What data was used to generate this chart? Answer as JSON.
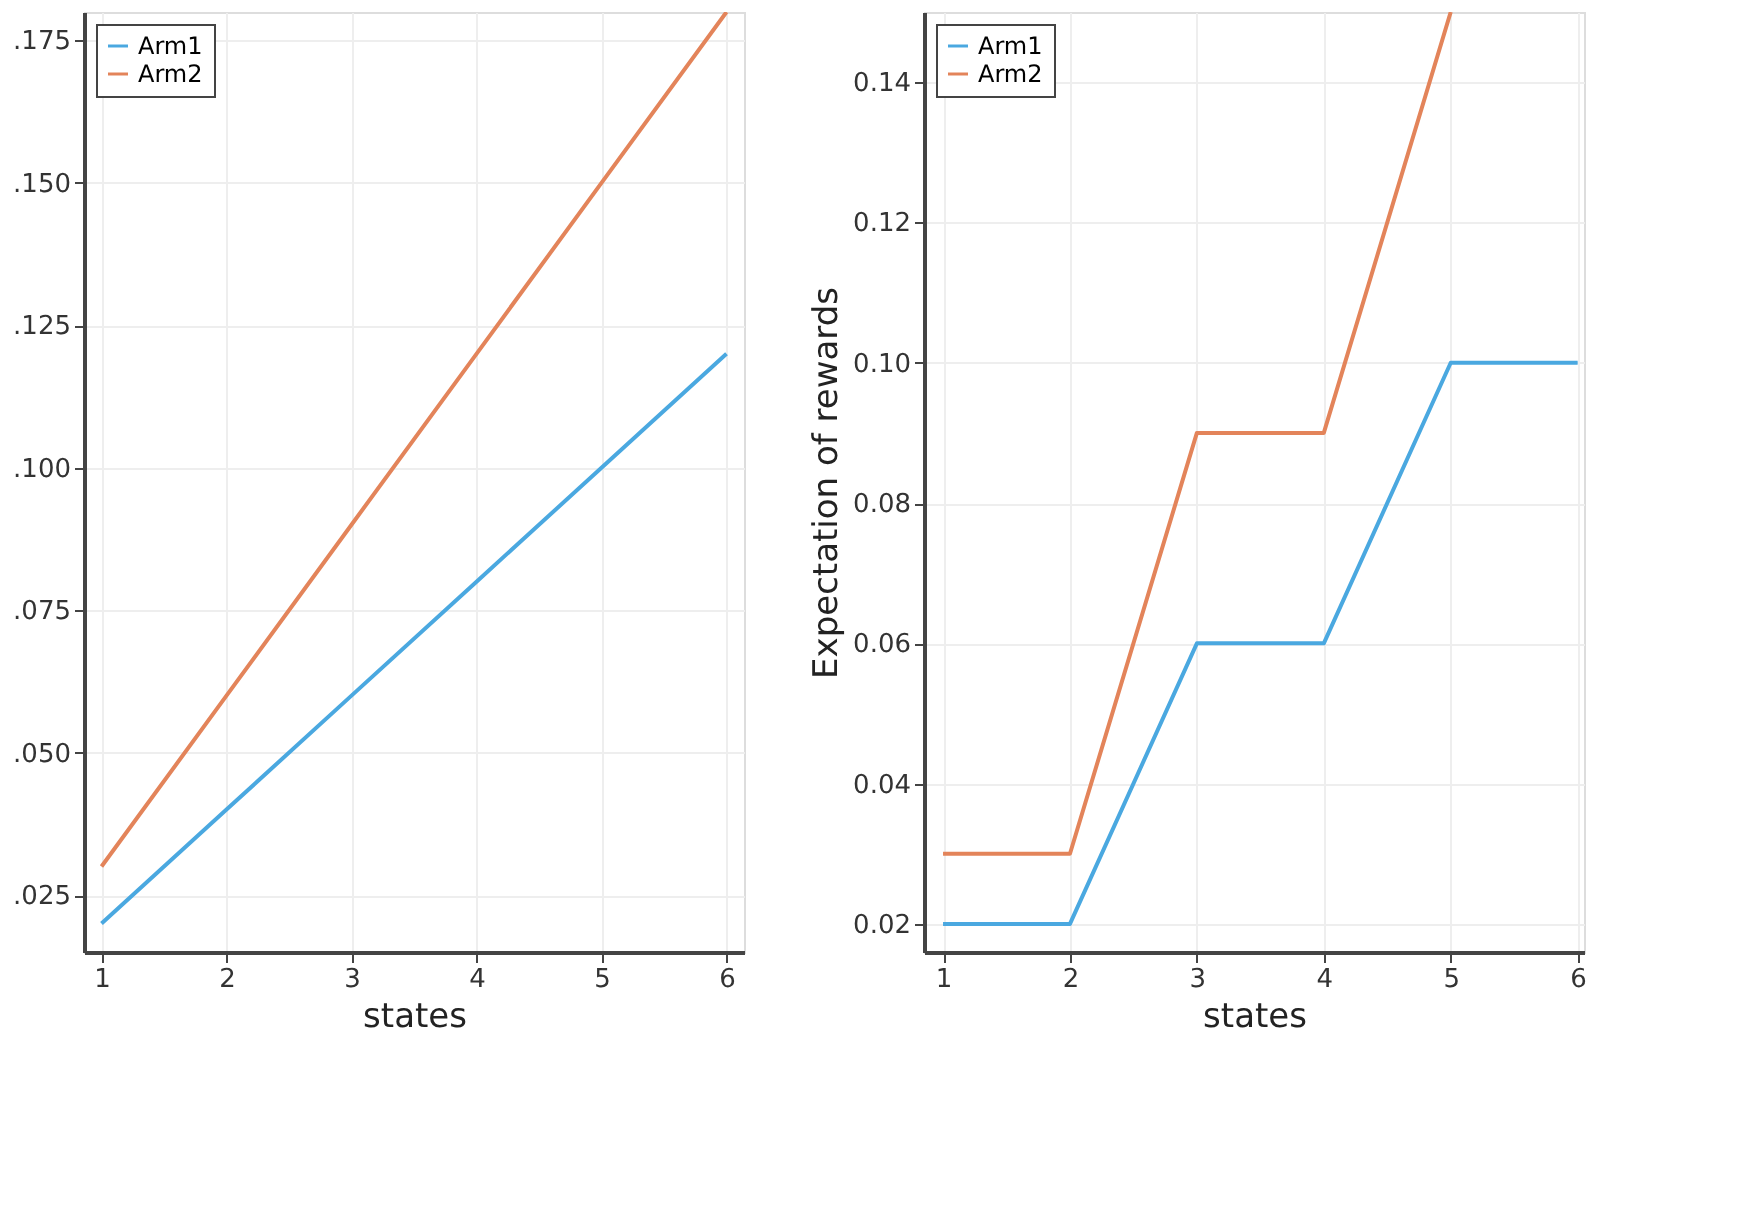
{
  "chart_data": [
    {
      "type": "line",
      "xlabel": "states",
      "x": [
        1,
        2,
        3,
        4,
        5,
        6
      ],
      "xlim": [
        0.86,
        6.14
      ],
      "xticks": [
        1,
        2,
        3,
        4,
        5,
        6
      ],
      "ylim": [
        0.015,
        0.18
      ],
      "yticks": [
        {
          "value": 0.025,
          "label": ".025"
        },
        {
          "value": 0.05,
          "label": ".050"
        },
        {
          "value": 0.075,
          "label": ".075"
        },
        {
          "value": 0.1,
          "label": ".100"
        },
        {
          "value": 0.125,
          "label": ".125"
        },
        {
          "value": 0.15,
          "label": ".150"
        },
        {
          "value": 0.175,
          "label": ".175"
        }
      ],
      "grid": true,
      "legend": "top left",
      "series": [
        {
          "name": "Arm1",
          "color": "#4aa8e0",
          "values": [
            0.02,
            0.04,
            0.06,
            0.08,
            0.1,
            0.12
          ]
        },
        {
          "name": "Arm2",
          "color": "#e3845a",
          "values": [
            0.03,
            0.06,
            0.09,
            0.12,
            0.15,
            0.18
          ]
        }
      ]
    },
    {
      "type": "line",
      "xlabel": "states",
      "ylabel": "Expectation of rewards",
      "x": [
        1,
        2,
        3,
        4,
        5,
        6
      ],
      "xlim": [
        0.85,
        6.05
      ],
      "xticks": [
        1,
        2,
        3,
        4,
        5,
        6
      ],
      "ylim": [
        0.016,
        0.15
      ],
      "yticks": [
        {
          "value": 0.02,
          "label": "0.02"
        },
        {
          "value": 0.04,
          "label": "0.04"
        },
        {
          "value": 0.06,
          "label": "0.06"
        },
        {
          "value": 0.08,
          "label": "0.08"
        },
        {
          "value": 0.1,
          "label": "0.10"
        },
        {
          "value": 0.12,
          "label": "0.12"
        },
        {
          "value": 0.14,
          "label": "0.14"
        }
      ],
      "grid": true,
      "legend": "top left",
      "series": [
        {
          "name": "Arm1",
          "color": "#4aa8e0",
          "values": [
            0.02,
            0.02,
            0.06,
            0.06,
            0.1,
            0.1
          ]
        },
        {
          "name": "Arm2",
          "color": "#e3845a",
          "values": [
            0.03,
            0.03,
            0.09,
            0.09,
            0.15,
            null
          ]
        }
      ]
    }
  ]
}
